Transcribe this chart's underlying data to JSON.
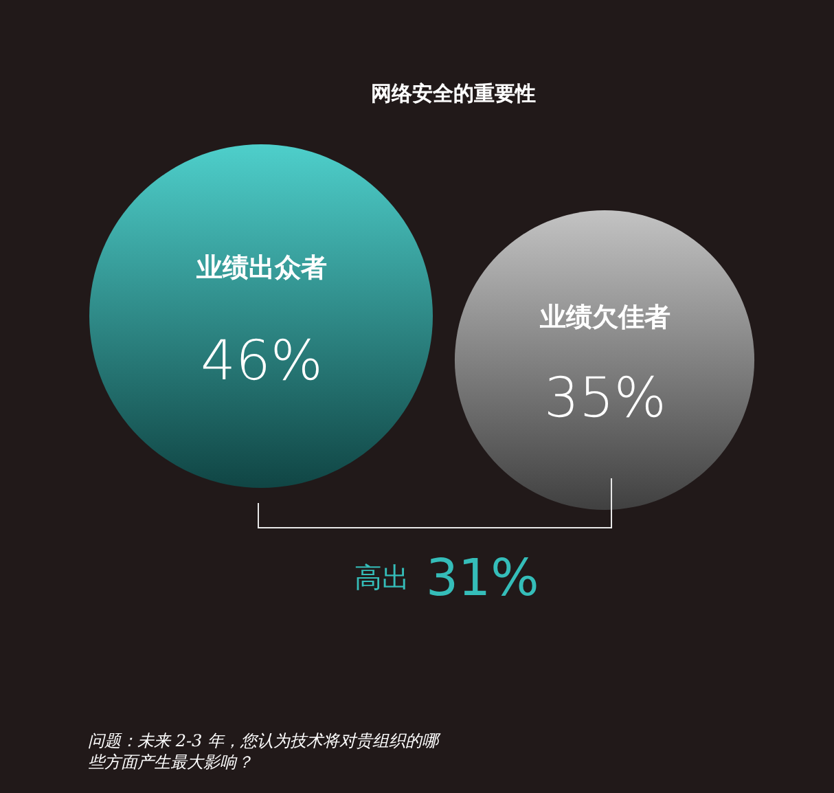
{
  "chart_data": {
    "type": "other",
    "title": "网络安全的重要性",
    "categories": [
      "业绩出众者",
      "业绩欠佳者"
    ],
    "values": [
      46,
      35
    ],
    "value_labels": [
      "46%",
      "35%"
    ],
    "colors": [
      "#2fc6c2",
      "#b8b8b8"
    ],
    "annotations": [
      "高出",
      "31%",
      "问题：未来 2-3 年，您认为技术将对贵组织的哪些方面产生最大影响？"
    ]
  }
}
